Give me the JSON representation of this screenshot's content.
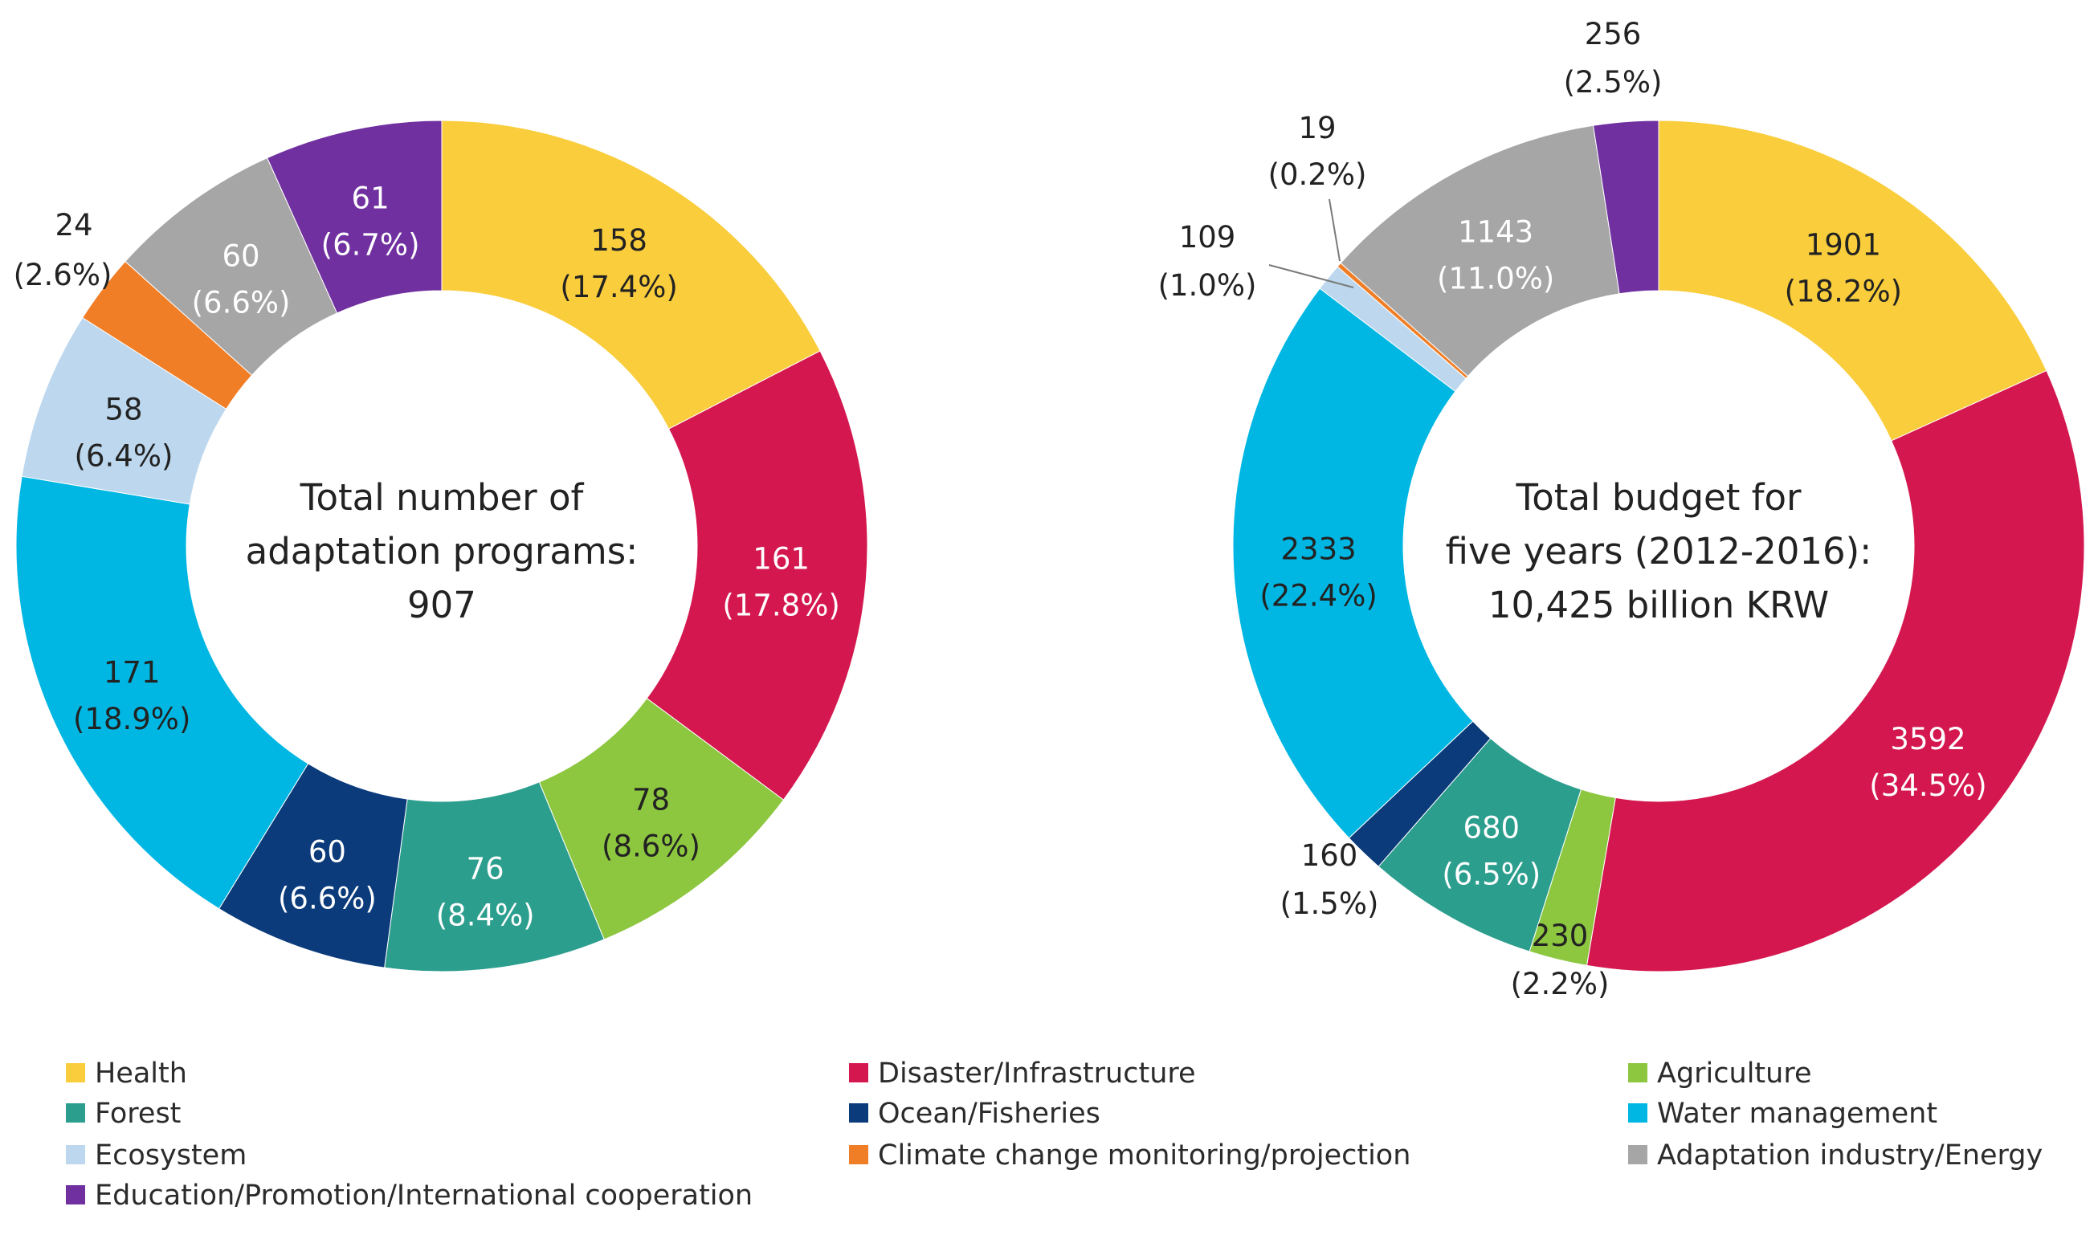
{
  "chart_data": [
    {
      "type": "donut",
      "name": "programs",
      "center_lines": [
        "Total number of",
        "adaptation programs:",
        "907"
      ],
      "slices": [
        {
          "key": "health",
          "value": 158,
          "label": "158",
          "pct": "(17.4%)"
        },
        {
          "key": "disaster",
          "value": 161,
          "label": "161",
          "pct": "(17.8%)"
        },
        {
          "key": "agriculture",
          "value": 78,
          "label": "78",
          "pct": "(8.6%)"
        },
        {
          "key": "forest",
          "value": 76,
          "label": "76",
          "pct": "(8.4%)"
        },
        {
          "key": "ocean",
          "value": 60,
          "label": "60",
          "pct": "(6.6%)"
        },
        {
          "key": "water",
          "value": 171,
          "label": "171",
          "pct": "(18.9%)"
        },
        {
          "key": "ecosystem",
          "value": 58,
          "label": "58",
          "pct": "(6.4%)"
        },
        {
          "key": "climate",
          "value": 24,
          "label": "24",
          "pct": "(2.6%)"
        },
        {
          "key": "industry",
          "value": 60,
          "label": "60",
          "pct": "(6.6%)"
        },
        {
          "key": "education",
          "value": 61,
          "label": "61",
          "pct": "(6.7%)"
        }
      ]
    },
    {
      "type": "donut",
      "name": "budget",
      "center_lines": [
        "Total budget for",
        "five years (2012-2016):",
        "10,425 billion KRW"
      ],
      "slices": [
        {
          "key": "health",
          "value": 1901,
          "label": "1901",
          "pct": "(18.2%)"
        },
        {
          "key": "disaster",
          "value": 3592,
          "label": "3592",
          "pct": "(34.5%)"
        },
        {
          "key": "agriculture",
          "value": 230,
          "label": "230",
          "pct": "(2.2%)"
        },
        {
          "key": "forest",
          "value": 680,
          "label": "680",
          "pct": "(6.5%)"
        },
        {
          "key": "ocean",
          "value": 160,
          "label": "160",
          "pct": "(1.5%)"
        },
        {
          "key": "water",
          "value": 2333,
          "label": "2333",
          "pct": "(22.4%)"
        },
        {
          "key": "ecosystem",
          "value": 109,
          "label": "109",
          "pct": "(1.0%)"
        },
        {
          "key": "climate",
          "value": 19,
          "label": "19",
          "pct": "(0.2%)"
        },
        {
          "key": "industry",
          "value": 1143,
          "label": "1143",
          "pct": "(11.0%)"
        },
        {
          "key": "education",
          "value": 256,
          "label": "256",
          "pct": "(2.5%)"
        }
      ]
    }
  ],
  "categories": [
    {
      "key": "health",
      "name": "Health",
      "color": "#F9CD3C",
      "label_color": "#222222"
    },
    {
      "key": "disaster",
      "name": "Disaster/Infrastructure",
      "color": "#D4184F",
      "label_color": "#ffffff"
    },
    {
      "key": "agriculture",
      "name": "Agriculture",
      "color": "#8DC63F",
      "label_color": "#222222"
    },
    {
      "key": "forest",
      "name": "Forest",
      "color": "#2C9E8E",
      "label_color": "#ffffff"
    },
    {
      "key": "ocean",
      "name": "Ocean/Fisheries",
      "color": "#0B3B7A",
      "label_color": "#ffffff"
    },
    {
      "key": "water",
      "name": "Water management",
      "color": "#00B7E3",
      "label_color": "#222222"
    },
    {
      "key": "ecosystem",
      "name": "Ecosystem",
      "color": "#BCD7EE",
      "label_color": "#222222"
    },
    {
      "key": "climate",
      "name": "Climate change monitoring/projection",
      "color": "#F07E26",
      "label_color": "#222222"
    },
    {
      "key": "industry",
      "name": "Adaptation industry/Energy",
      "color": "#A6A6A6",
      "label_color": "#ffffff"
    },
    {
      "key": "education",
      "name": "Education/Promotion/International cooperation",
      "color": "#7030A0",
      "label_color": "#ffffff"
    }
  ]
}
